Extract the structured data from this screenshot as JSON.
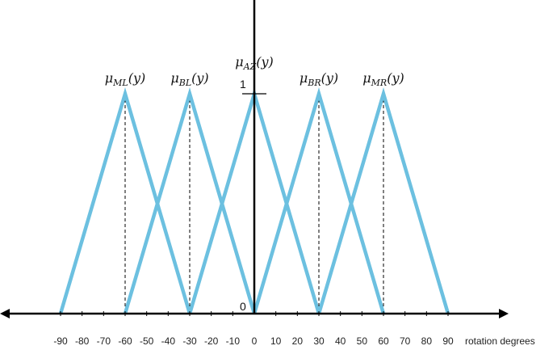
{
  "chart_data": {
    "type": "line",
    "xlabel": "rotation degrees",
    "ylabel": "",
    "xlim": [
      -90,
      90
    ],
    "ylim": [
      0,
      1
    ],
    "x_ticks": [
      -90,
      -80,
      -70,
      -60,
      -50,
      -40,
      -30,
      -20,
      -10,
      0,
      10,
      20,
      30,
      40,
      50,
      60,
      70,
      80,
      90
    ],
    "y_ticks": [
      0,
      1
    ],
    "grid": false,
    "legend": "none",
    "line_color": "#6cc0e0",
    "series": [
      {
        "name": "μML(y)",
        "label_main": "μ",
        "label_sub": "ML",
        "label_arg": "(y)",
        "x": [
          -90,
          -60,
          -30
        ],
        "y": [
          0,
          1,
          0
        ]
      },
      {
        "name": "μBL(y)",
        "label_main": "μ",
        "label_sub": "BL",
        "label_arg": "(y)",
        "x": [
          -60,
          -30,
          0
        ],
        "y": [
          0,
          1,
          0
        ]
      },
      {
        "name": "μAZ(y)",
        "label_main": "μ",
        "label_sub": "AZ",
        "label_arg": "(y)",
        "x": [
          -30,
          0,
          30
        ],
        "y": [
          0,
          1,
          0
        ]
      },
      {
        "name": "μBR(y)",
        "label_main": "μ",
        "label_sub": "BR",
        "label_arg": "(y)",
        "x": [
          0,
          30,
          60
        ],
        "y": [
          0,
          1,
          0
        ]
      },
      {
        "name": "μMR(y)",
        "label_main": "μ",
        "label_sub": "MR",
        "label_arg": "(y)",
        "x": [
          30,
          60,
          90
        ],
        "y": [
          0,
          1,
          0
        ]
      }
    ]
  }
}
